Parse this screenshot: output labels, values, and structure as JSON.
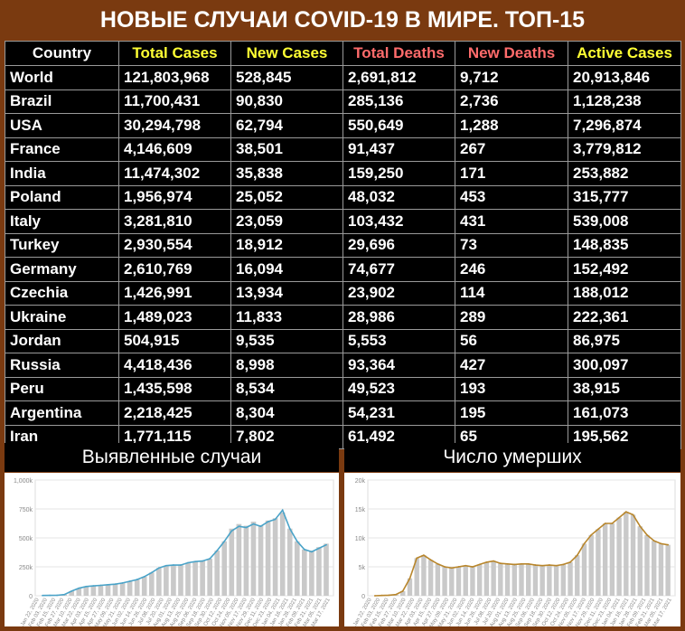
{
  "title": "НОВЫЕ СЛУЧАИ COVID-19 В МИРЕ. ТОП-15",
  "colors": {
    "background": "#7a3a10",
    "header_yellow": "#ffff33",
    "header_red": "#ff6b6b",
    "cases_line": "#4aa3c8",
    "deaths_line": "#b8862c"
  },
  "table": {
    "columns": [
      "Country",
      "Total Cases",
      "New Cases",
      "Total Deaths",
      "New Deaths",
      "Active Cases"
    ],
    "rows": [
      [
        "World",
        "121,803,968",
        "528,845",
        "2,691,812",
        "9,712",
        "20,913,846"
      ],
      [
        "Brazil",
        "11,700,431",
        "90,830",
        "285,136",
        "2,736",
        "1,128,238"
      ],
      [
        "USA",
        "30,294,798",
        "62,794",
        "550,649",
        "1,288",
        "7,296,874"
      ],
      [
        "France",
        "4,146,609",
        "38,501",
        "91,437",
        "267",
        "3,779,812"
      ],
      [
        "India",
        "11,474,302",
        "35,838",
        "159,250",
        "171",
        "253,882"
      ],
      [
        "Poland",
        "1,956,974",
        "25,052",
        "48,032",
        "453",
        "315,777"
      ],
      [
        "Italy",
        "3,281,810",
        "23,059",
        "103,432",
        "431",
        "539,008"
      ],
      [
        "Turkey",
        "2,930,554",
        "18,912",
        "29,696",
        "73",
        "148,835"
      ],
      [
        "Germany",
        "2,610,769",
        "16,094",
        "74,677",
        "246",
        "152,492"
      ],
      [
        "Czechia",
        "1,426,991",
        "13,934",
        "23,902",
        "114",
        "188,012"
      ],
      [
        "Ukraine",
        "1,489,023",
        "11,833",
        "28,986",
        "289",
        "222,361"
      ],
      [
        "Jordan",
        "504,915",
        "9,535",
        "5,553",
        "56",
        "86,975"
      ],
      [
        "Russia",
        "4,418,436",
        "8,998",
        "93,364",
        "427",
        "300,097"
      ],
      [
        "Peru",
        "1,435,598",
        "8,534",
        "49,523",
        "193",
        "38,915"
      ],
      [
        "Argentina",
        "2,218,425",
        "8,304",
        "54,231",
        "195",
        "161,073"
      ],
      [
        "Iran",
        "1,771,115",
        "7,802",
        "61,492",
        "65",
        "195,562"
      ]
    ]
  },
  "chart_data": [
    {
      "type": "bar",
      "title": "Выявленные случаи",
      "ylim": [
        0,
        1000000
      ],
      "yticks": [
        "0",
        "250k",
        "500k",
        "750k",
        "1,000k"
      ],
      "xticks": [
        "Jan 22, 2020",
        "Feb 03, 2020",
        "Feb 15, 2020",
        "Feb 27, 2020",
        "Mar 10, 2020",
        "Mar 22, 2020",
        "Apr 03, 2020",
        "Apr 15, 2020",
        "Apr 27, 2020",
        "May 09, 2020",
        "May 21, 2020",
        "Jun 02, 2020",
        "Jun 14, 2020",
        "Jun 26, 2020",
        "Jul 08, 2020",
        "Jul 20, 2020",
        "Aug 01, 2020",
        "Aug 13, 2020",
        "Aug 25, 2020",
        "Sep 06, 2020",
        "Sep 18, 2020",
        "Sep 30, 2020",
        "Oct 12, 2020",
        "Oct 24, 2020",
        "Nov 05, 2020",
        "Nov 17, 2020",
        "Nov 29, 2020",
        "Dec 11, 2020",
        "Dec 23, 2020",
        "Jan 04, 2021",
        "Jan 16, 2021",
        "Jan 28, 2021",
        "Feb 09, 2021",
        "Feb 21, 2021",
        "Mar 05, 2021",
        "Mar 17, 2021"
      ],
      "grid": true,
      "values": [
        2000,
        3000,
        4000,
        10000,
        40000,
        65000,
        80000,
        85000,
        90000,
        95000,
        100000,
        110000,
        125000,
        140000,
        165000,
        200000,
        240000,
        260000,
        265000,
        265000,
        285000,
        295000,
        300000,
        320000,
        390000,
        470000,
        580000,
        620000,
        605000,
        640000,
        610000,
        650000,
        670000,
        720000,
        580000,
        470000,
        400000,
        390000,
        420000,
        450000
      ],
      "series_line": [
        2000,
        3000,
        4000,
        10000,
        40000,
        65000,
        80000,
        85000,
        90000,
        95000,
        100000,
        110000,
        125000,
        140000,
        165000,
        200000,
        240000,
        260000,
        265000,
        265000,
        285000,
        295000,
        300000,
        320000,
        390000,
        470000,
        560000,
        600000,
        590000,
        620000,
        600000,
        640000,
        660000,
        740000,
        580000,
        470000,
        400000,
        380000,
        410000,
        440000
      ]
    },
    {
      "type": "bar",
      "title": "Число умерших",
      "ylim": [
        0,
        20000
      ],
      "yticks": [
        "0",
        "5k",
        "10k",
        "15k",
        "20k"
      ],
      "xticks": [
        "Jan 22, 2020",
        "Feb 03, 2020",
        "Feb 15, 2020",
        "Feb 27, 2020",
        "Mar 10, 2020",
        "Mar 22, 2020",
        "Apr 03, 2020",
        "Apr 15, 2020",
        "Apr 27, 2020",
        "May 09, 2020",
        "May 21, 2020",
        "Jun 02, 2020",
        "Jun 14, 2020",
        "Jun 26, 2020",
        "Jul 08, 2020",
        "Jul 20, 2020",
        "Aug 01, 2020",
        "Aug 13, 2020",
        "Aug 25, 2020",
        "Sep 06, 2020",
        "Sep 18, 2020",
        "Sep 30, 2020",
        "Oct 12, 2020",
        "Oct 24, 2020",
        "Nov 05, 2020",
        "Nov 17, 2020",
        "Nov 29, 2020",
        "Dec 11, 2020",
        "Dec 23, 2020",
        "Jan 04, 2021",
        "Jan 16, 2021",
        "Jan 28, 2021",
        "Feb 09, 2021",
        "Feb 21, 2021",
        "Mar 05, 2021",
        "Mar 17, 2021"
      ],
      "grid": true,
      "values": [
        0,
        50,
        100,
        200,
        800,
        3000,
        6500,
        7000,
        6200,
        5500,
        5000,
        4800,
        5000,
        5200,
        5000,
        5400,
        5800,
        6000,
        5600,
        5500,
        5400,
        5500,
        5500,
        5300,
        5200,
        5300,
        5200,
        5400,
        5800,
        7000,
        9000,
        10500,
        11500,
        12500,
        12500,
        13500,
        14500,
        14000,
        12000,
        10500,
        9500,
        9000,
        8800
      ],
      "series_line": [
        0,
        50,
        100,
        200,
        800,
        3000,
        6500,
        7000,
        6200,
        5500,
        5000,
        4800,
        5000,
        5200,
        5000,
        5400,
        5800,
        6000,
        5600,
        5500,
        5400,
        5500,
        5500,
        5300,
        5200,
        5300,
        5200,
        5400,
        5800,
        7000,
        9000,
        10500,
        11500,
        12500,
        12500,
        13500,
        14500,
        14000,
        12000,
        10500,
        9500,
        9000,
        8800
      ]
    }
  ]
}
